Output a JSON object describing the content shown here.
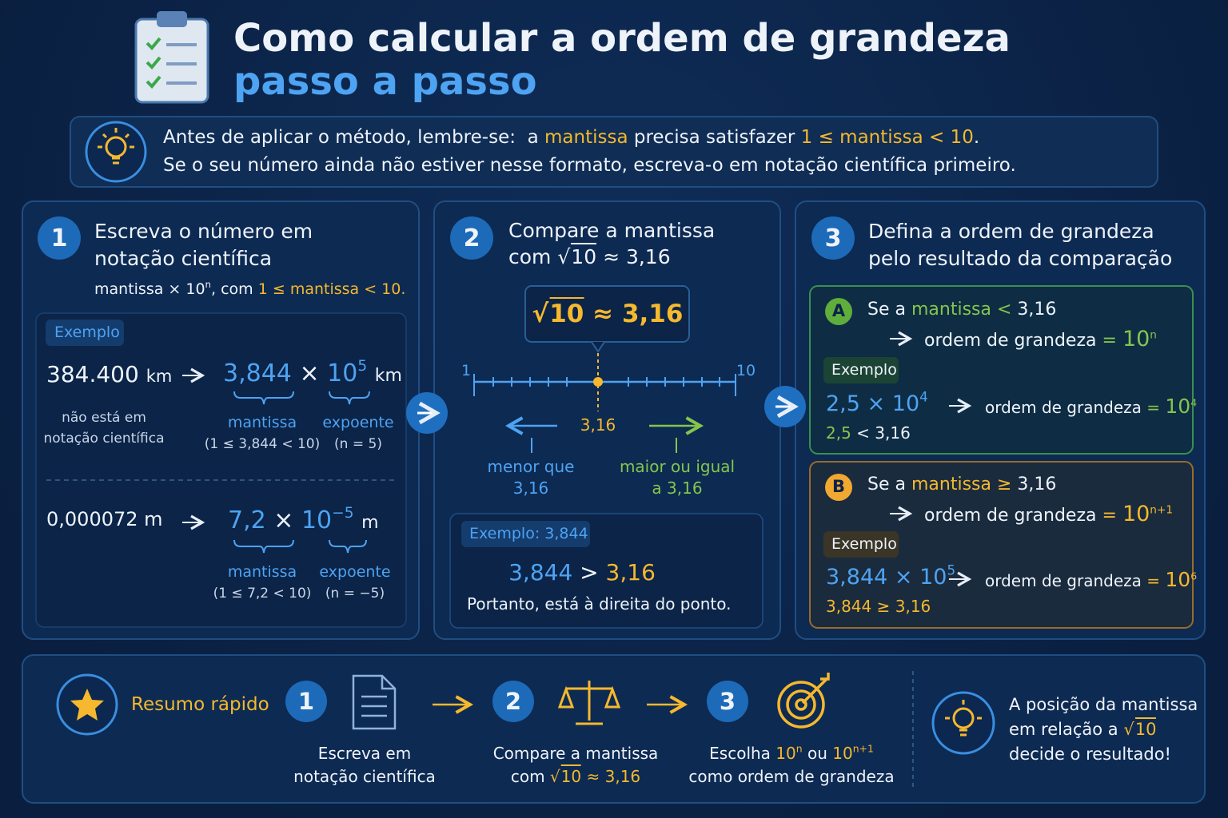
{
  "header": {
    "title": "Como calcular a ordem de grandeza",
    "subtitle": "passo a passo"
  },
  "reminder": {
    "line1": {
      "intro": "Antes de aplicar o método, lembre-se:",
      "a": "a",
      "mantissa": "mantissa",
      "verb": "precisa satisfazer",
      "condition": "1 ≤ mantissa < 10",
      "end": "."
    },
    "line2": "Se o seu número ainda não estiver nesse formato, escreva-o em notação científica primeiro."
  },
  "step1": {
    "number": "1",
    "title": "Escreva o número em notação científica",
    "formula": {
      "base": "mantissa × 10",
      "exp": "n",
      "with": ", com",
      "condition": "1 ≤ mantissa < 10",
      "end": "."
    },
    "badge": "Exemplo",
    "examples": [
      {
        "original": "384.400",
        "unit": "km",
        "note": "não está em notação científica",
        "mantissa": "3,844",
        "times": "×",
        "base": "10",
        "exponent": "5",
        "unit_result": "km",
        "mantissa_label": "mantissa",
        "mantissa_check": "(1 ≤ 3,844 < 10)",
        "exponent_label": "expoente",
        "exponent_value": "(n = 5)"
      },
      {
        "original": "0,000072",
        "unit": "m",
        "mantissa": "7,2",
        "times": "×",
        "base": "10",
        "exponent": "−5",
        "unit_result": "m",
        "mantissa_label": "mantissa",
        "mantissa_check": "(1 ≤ 7,2 < 10)",
        "exponent_label": "expoente",
        "exponent_value": "(n = −5)"
      }
    ]
  },
  "step2": {
    "number": "2",
    "title_line1": "Compare a mantissa",
    "title_line2": {
      "with": "com",
      "root": "√",
      "radicand": "10",
      "approx": "≈ 3,16"
    },
    "callout": {
      "root": "√",
      "radicand": "10",
      "approx": "≈ 3,16"
    },
    "number_line": {
      "start": "1",
      "end": "10",
      "point": "3,16",
      "left_label": "menor que 3,16",
      "right_label": "maior ou igual a 3,16"
    },
    "example": {
      "badge": "Exemplo: 3,844",
      "mantissa": "3,844",
      "comparison": ">",
      "reference": "3,16",
      "conclusion": "Portanto, está à direita do ponto."
    }
  },
  "step3": {
    "number": "3",
    "title": "Defina a ordem de grandeza pelo resultado da comparação",
    "cases": [
      {
        "letter": "A",
        "condition": {
          "prefix": "Se a",
          "mantissa": "mantissa",
          "operator": "<",
          "value": "3,16"
        },
        "result": {
          "label": "ordem de grandeza",
          "equals": "=",
          "base": "10",
          "exponent": "n"
        },
        "badge": "Exemplo",
        "example": {
          "mantissa": "2,5",
          "times": "×",
          "base": "10",
          "exponent": "4",
          "result_label": "ordem de grandeza",
          "equals": "=",
          "result_base": "10",
          "result_exponent": "4",
          "check_mantissa": "2,5",
          "check_operator": "<",
          "check_value": "3,16"
        }
      },
      {
        "letter": "B",
        "condition": {
          "prefix": "Se a",
          "mantissa": "mantissa",
          "operator": "≥",
          "value": "3,16"
        },
        "result": {
          "label": "ordem de grandeza",
          "equals": "=",
          "base": "10",
          "exponent": "n+1"
        },
        "badge": "Exemplo",
        "example": {
          "mantissa": "3,844",
          "times": "×",
          "base": "10",
          "exponent": "5",
          "result_label": "ordem de grandeza",
          "equals": "=",
          "result_base": "10",
          "result_exponent": "6",
          "check_mantissa": "3,844",
          "check_operator": "≥",
          "check_value": "3,16"
        }
      }
    ]
  },
  "summary": {
    "title": "Resumo rápido",
    "steps": [
      {
        "number": "1",
        "caption": {
          "line1": "Escreva em",
          "line2": "notação científica"
        }
      },
      {
        "number": "2",
        "caption": {
          "line1": "Compare a mantissa",
          "with": "com",
          "root": "√",
          "radicand": "10",
          "approx": "≈ 3,16"
        }
      },
      {
        "number": "3",
        "caption": {
          "choose": "Escolha",
          "base1": "10",
          "exp1": "n",
          "or": "ou",
          "base2": "10",
          "exp2": "n+1",
          "line2": "como ordem de grandeza"
        }
      }
    ],
    "insight": {
      "line1": "A posição da mantissa",
      "line2": "em relação a",
      "root": "√",
      "radicand": "10",
      "line3": "decide o resultado!"
    }
  }
}
